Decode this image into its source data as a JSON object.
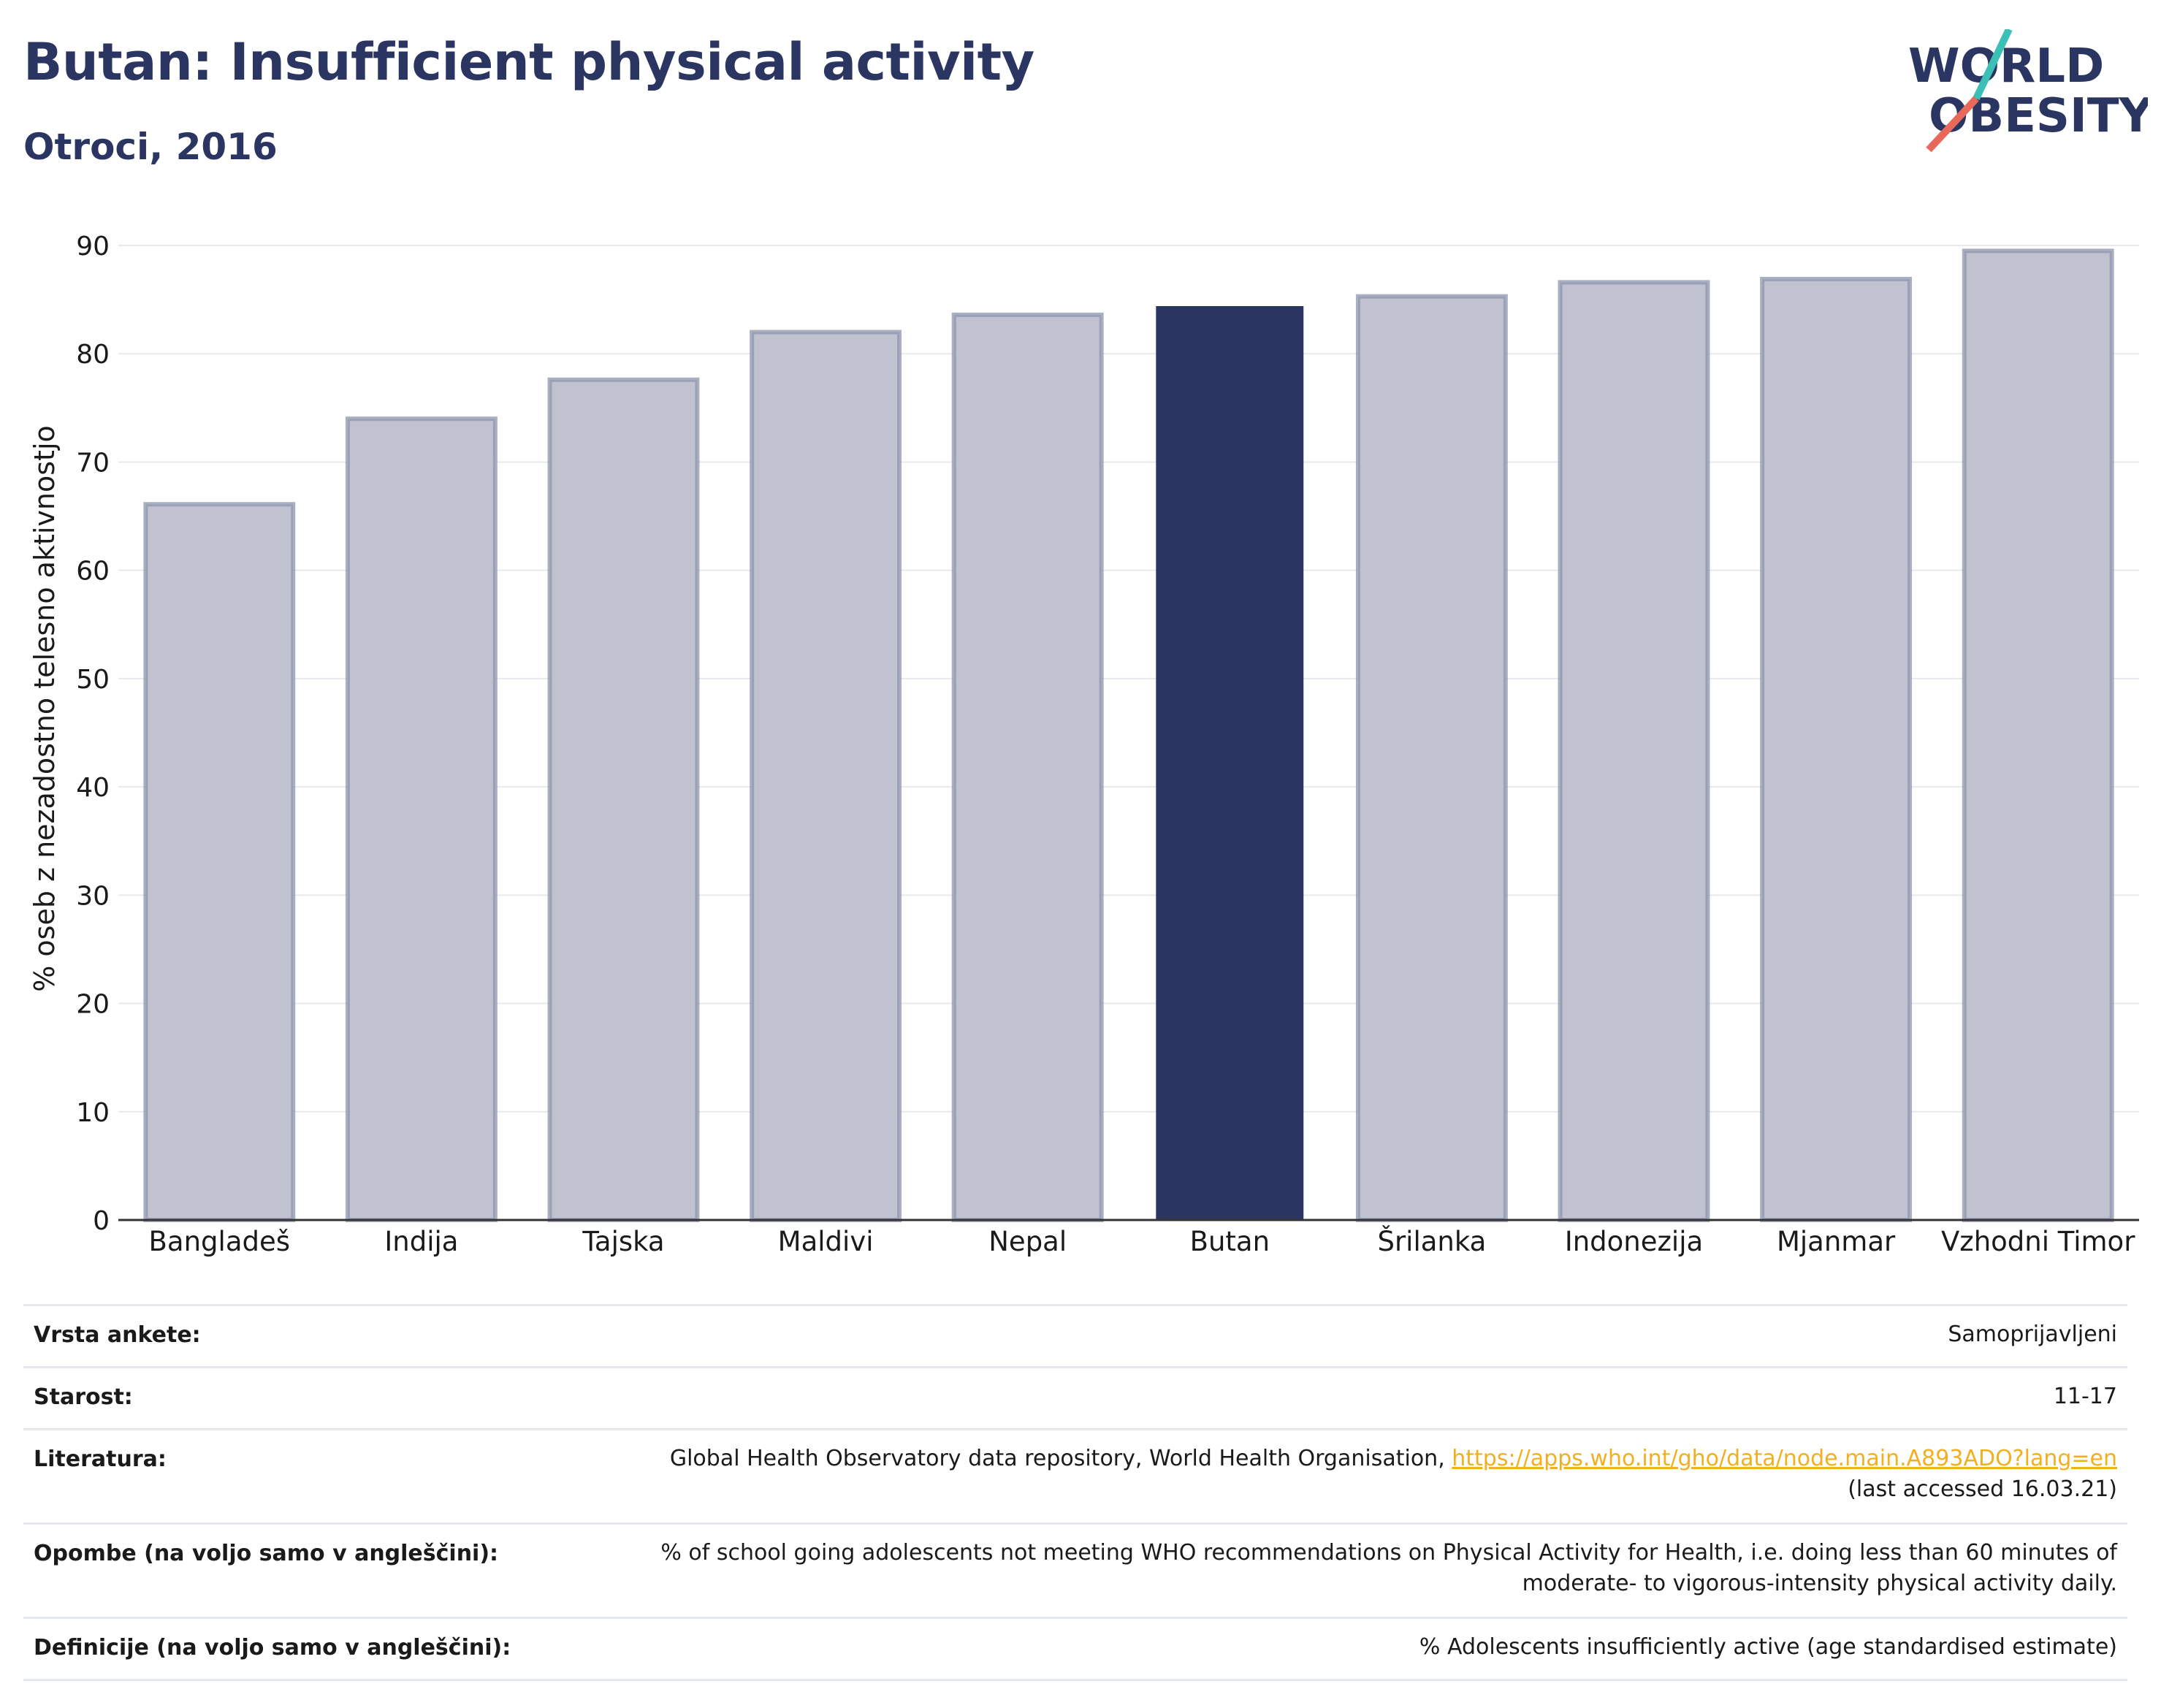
{
  "header": {
    "title": "Butan: Insufficient physical activity",
    "subtitle": "Otroci, 2016"
  },
  "logo": {
    "line1": "WORLD",
    "line2": "OBESITY"
  },
  "colors": {
    "highlight_bar": "#2b3561",
    "other_bar": "#c0c3cf",
    "title": "#2b3561",
    "link": "#f0b020",
    "logo_slash_top": "#3bbfb6",
    "logo_slash_bottom": "#e8695a"
  },
  "chart_data": {
    "type": "bar",
    "categories": [
      "Bangladeš",
      "Indija",
      "Tajska",
      "Maldivi",
      "Nepal",
      "Butan",
      "Šrilanka",
      "Indonezija",
      "Mjanmar",
      "Vzhodni Timor"
    ],
    "values": [
      66.1,
      74.0,
      77.6,
      82.0,
      83.6,
      84.4,
      85.3,
      86.6,
      86.9,
      89.5
    ],
    "highlight": "Butan",
    "ylabel": "% oseb z nezadostno telesno aktivnostjo",
    "ylim": [
      0,
      90
    ],
    "yticks": [
      0,
      10,
      20,
      30,
      40,
      50,
      60,
      70,
      80,
      90
    ],
    "grid": true
  },
  "meta": {
    "rows": [
      {
        "label": "Vrsta ankete:",
        "value": "Samoprijavljeni"
      },
      {
        "label": "Starost:",
        "value": "11-17"
      },
      {
        "label": "Literatura:",
        "value": "Global Health Observatory data repository, World Health Organisation, ",
        "link": "https://apps.who.int/gho/data/node.main.A893ADO?lang=en",
        "value2": "(last accessed 16.03.21)"
      },
      {
        "label": "Opombe (na voljo samo v angleščini):",
        "value": "% of school going adolescents not meeting WHO recommendations on Physical Activity for Health, i.e. doing less than 60 minutes of",
        "value2": "moderate- to vigorous-intensity physical activity daily."
      },
      {
        "label": "Definicije (na voljo samo v angleščini):",
        "value": "% Adolescents insufficiently active (age standardised estimate)"
      }
    ]
  }
}
